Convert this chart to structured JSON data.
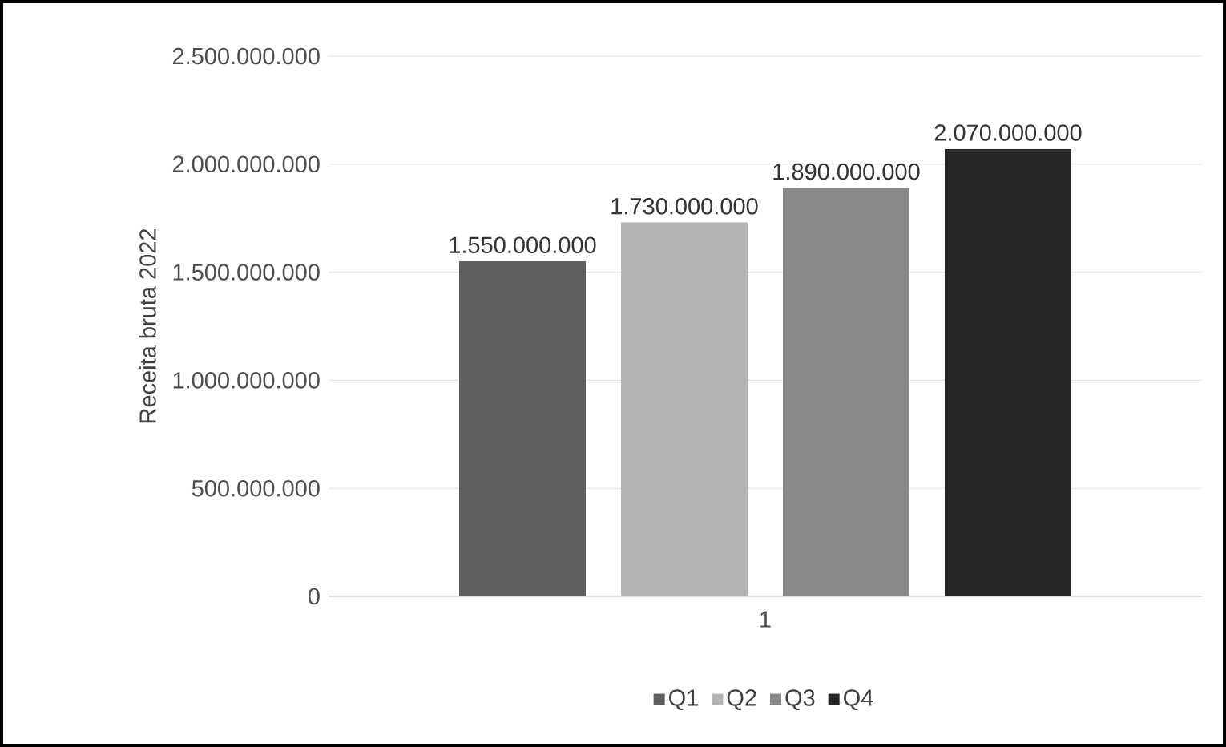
{
  "chart_data": {
    "type": "bar",
    "ylabel": "Receita bruta 2022",
    "categories": [
      "1"
    ],
    "series": [
      {
        "name": "Q1",
        "color": "#5f5f5f",
        "values": [
          1550000000
        ],
        "value_labels": [
          "1.550.000.000"
        ]
      },
      {
        "name": "Q2",
        "color": "#b3b3b3",
        "values": [
          1730000000
        ],
        "value_labels": [
          "1.730.000.000"
        ]
      },
      {
        "name": "Q3",
        "color": "#8a8a8a",
        "values": [
          1890000000
        ],
        "value_labels": [
          "1.890.000.000"
        ]
      },
      {
        "name": "Q4",
        "color": "#262626",
        "values": [
          2070000000
        ],
        "value_labels": [
          "2.070.000.000"
        ]
      }
    ],
    "ylim": [
      0,
      2500000000
    ],
    "yticks": [
      0,
      {
        "value": 500000000,
        "label": "500.000.000"
      },
      {
        "value": 1000000000,
        "label": "1.000.000.000"
      },
      {
        "value": 1500000000,
        "label": "1.500.000.000"
      },
      {
        "value": 2000000000,
        "label": "2.000.000.000"
      },
      {
        "value": 2500000000,
        "label": "2.500.000.000"
      }
    ],
    "grid": "y",
    "legend": "bottom"
  }
}
